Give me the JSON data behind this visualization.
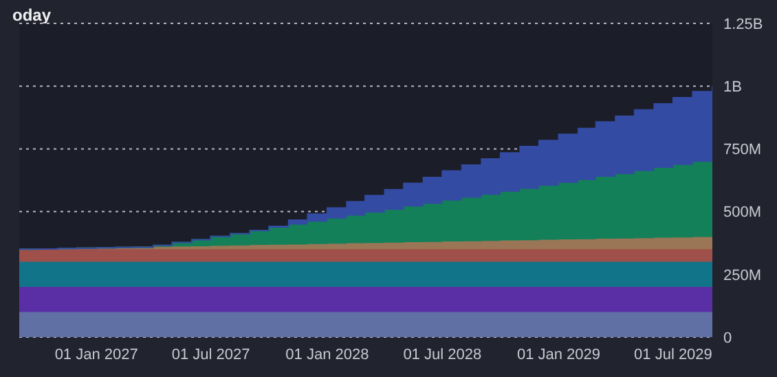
{
  "chart_data": {
    "type": "area",
    "title": "oday",
    "stacked": true,
    "x": [
      "2026-09-01",
      "2026-10-01",
      "2026-11-01",
      "2026-12-01",
      "2027-01-01",
      "2027-02-01",
      "2027-03-01",
      "2027-04-01",
      "2027-05-01",
      "2027-06-01",
      "2027-07-01",
      "2027-08-01",
      "2027-09-01",
      "2027-10-01",
      "2027-11-01",
      "2027-12-01",
      "2028-01-01",
      "2028-02-01",
      "2028-03-01",
      "2028-04-01",
      "2028-05-01",
      "2028-06-01",
      "2028-07-01",
      "2028-08-01",
      "2028-09-01",
      "2028-10-01",
      "2028-11-01",
      "2028-12-01",
      "2029-01-01",
      "2029-02-01",
      "2029-03-01",
      "2029-04-01",
      "2029-05-01",
      "2029-06-01",
      "2029-07-01",
      "2029-08-01",
      "2029-09-01"
    ],
    "series": [
      {
        "color": "#6070a4",
        "values": [
          100000000,
          100000000,
          100000000,
          100000000,
          100000000,
          100000000,
          100000000,
          100000000,
          100000000,
          100000000,
          100000000,
          100000000,
          100000000,
          100000000,
          100000000,
          100000000,
          100000000,
          100000000,
          100000000,
          100000000,
          100000000,
          100000000,
          100000000,
          100000000,
          100000000,
          100000000,
          100000000,
          100000000,
          100000000,
          100000000,
          100000000,
          100000000,
          100000000,
          100000000,
          100000000,
          100000000,
          100000000
        ]
      },
      {
        "color": "#5a2fa6",
        "values": [
          100000000,
          100000000,
          100000000,
          100000000,
          100000000,
          100000000,
          100000000,
          100000000,
          100000000,
          100000000,
          100000000,
          100000000,
          100000000,
          100000000,
          100000000,
          100000000,
          100000000,
          100000000,
          100000000,
          100000000,
          100000000,
          100000000,
          100000000,
          100000000,
          100000000,
          100000000,
          100000000,
          100000000,
          100000000,
          100000000,
          100000000,
          100000000,
          100000000,
          100000000,
          100000000,
          100000000,
          100000000
        ]
      },
      {
        "color": "#127489",
        "values": [
          100000000,
          100000000,
          100000000,
          100000000,
          100000000,
          100000000,
          100000000,
          100000000,
          100000000,
          100000000,
          100000000,
          100000000,
          100000000,
          100000000,
          100000000,
          100000000,
          100000000,
          100000000,
          100000000,
          100000000,
          100000000,
          100000000,
          100000000,
          100000000,
          100000000,
          100000000,
          100000000,
          100000000,
          100000000,
          100000000,
          100000000,
          100000000,
          100000000,
          100000000,
          100000000,
          100000000,
          100000000
        ]
      },
      {
        "color": "#a0504a",
        "values": [
          50000000,
          50000000,
          50000000,
          50000000,
          50000000,
          50000000,
          50000000,
          50000000,
          50000000,
          50000000,
          50000000,
          50000000,
          50000000,
          50000000,
          50000000,
          50000000,
          50000000,
          50000000,
          50000000,
          50000000,
          50000000,
          50000000,
          50000000,
          50000000,
          50000000,
          50000000,
          50000000,
          50000000,
          50000000,
          50000000,
          50000000,
          50000000,
          50000000,
          50000000,
          50000000,
          50000000,
          50000000
        ]
      },
      {
        "color": "#9b7656",
        "values": [
          0,
          1000000,
          3000000,
          4000000,
          6000000,
          7000000,
          8000000,
          10000000,
          11000000,
          12000000,
          14000000,
          15000000,
          17000000,
          18000000,
          19000000,
          21000000,
          22000000,
          24000000,
          25000000,
          26000000,
          28000000,
          29000000,
          31000000,
          32000000,
          33000000,
          35000000,
          36000000,
          38000000,
          39000000,
          40000000,
          42000000,
          43000000,
          44000000,
          46000000,
          47000000,
          49000000,
          50000000
        ]
      },
      {
        "color": "#138059",
        "values": [
          0,
          0,
          0,
          0,
          0,
          0,
          0,
          5000000,
          16000000,
          26000000,
          37000000,
          47000000,
          58000000,
          68000000,
          79000000,
          89000000,
          100000000,
          110000000,
          121000000,
          131000000,
          142000000,
          152000000,
          163000000,
          173000000,
          184000000,
          194000000,
          205000000,
          215000000,
          226000000,
          236000000,
          247000000,
          257000000,
          268000000,
          278000000,
          289000000,
          299000000,
          310000000
        ]
      },
      {
        "color": "#344ba3",
        "values": [
          0,
          0,
          0,
          0,
          0,
          0,
          0,
          0,
          0,
          0,
          0,
          0,
          0,
          5000000,
          18000000,
          30000000,
          43000000,
          55000000,
          68000000,
          80000000,
          93000000,
          105000000,
          118000000,
          130000000,
          143000000,
          155000000,
          168000000,
          180000000,
          193000000,
          205000000,
          218000000,
          230000000,
          243000000,
          255000000,
          268000000,
          280000000,
          290000000
        ]
      }
    ],
    "xlim": [
      "2026-09-01",
      "2029-09-01"
    ],
    "xticks": [
      {
        "value": "2027-01-01",
        "label": "01 Jan 2027"
      },
      {
        "value": "2027-07-01",
        "label": "01 Jul 2027"
      },
      {
        "value": "2028-01-01",
        "label": "01 Jan 2028"
      },
      {
        "value": "2028-07-01",
        "label": "01 Jul 2028"
      },
      {
        "value": "2029-01-01",
        "label": "01 Jan 2029"
      },
      {
        "value": "2029-07-01",
        "label": "01 Jul 2029"
      }
    ],
    "ylim": [
      0,
      1250000000
    ],
    "yticks": [
      {
        "value": 0,
        "label": "0"
      },
      {
        "value": 250000000,
        "label": "250M"
      },
      {
        "value": 500000000,
        "label": "500M"
      },
      {
        "value": 750000000,
        "label": "750M"
      },
      {
        "value": 1000000000,
        "label": "1B"
      },
      {
        "value": 1250000000,
        "label": "1.25B"
      }
    ],
    "grid": "y"
  }
}
